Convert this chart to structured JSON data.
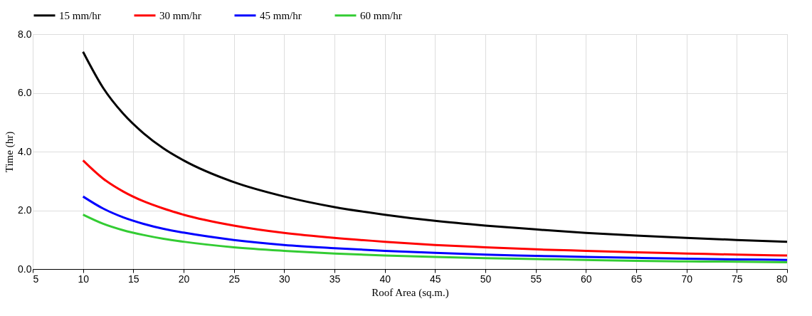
{
  "chart_data": {
    "type": "line",
    "xlabel": "Roof Area (sq.m.)",
    "ylabel": "Time (hr)",
    "x": [
      10,
      12,
      14,
      16,
      18,
      20,
      25,
      30,
      35,
      40,
      45,
      50,
      55,
      60,
      65,
      70,
      75,
      80
    ],
    "xlim": [
      5,
      80
    ],
    "xticks": [
      5,
      10,
      15,
      20,
      25,
      30,
      35,
      40,
      45,
      50,
      55,
      60,
      65,
      70,
      75,
      80
    ],
    "ylim": [
      0,
      8
    ],
    "yticks": [
      {
        "value": 0,
        "label": "0.0"
      },
      {
        "value": 2,
        "label": "2.0"
      },
      {
        "value": 4,
        "label": "4.0"
      },
      {
        "value": 6,
        "label": "6.0"
      },
      {
        "value": 8,
        "label": "8.0"
      }
    ],
    "grid": true,
    "legend": "top",
    "line_style": "solid",
    "marker": "none",
    "series": [
      {
        "name": "15 mm/hr",
        "color": "#000000",
        "values": [
          7.4,
          6.17,
          5.29,
          4.63,
          4.11,
          3.7,
          2.96,
          2.47,
          2.11,
          1.85,
          1.64,
          1.48,
          1.35,
          1.23,
          1.14,
          1.06,
          0.99,
          0.93
        ]
      },
      {
        "name": "30 mm/hr",
        "color": "#ff0000",
        "values": [
          3.7,
          3.08,
          2.64,
          2.31,
          2.06,
          1.85,
          1.48,
          1.23,
          1.06,
          0.93,
          0.82,
          0.74,
          0.67,
          0.62,
          0.57,
          0.53,
          0.49,
          0.46
        ]
      },
      {
        "name": "45 mm/hr",
        "color": "#0000ff",
        "values": [
          2.47,
          2.06,
          1.76,
          1.54,
          1.37,
          1.24,
          0.99,
          0.82,
          0.71,
          0.62,
          0.55,
          0.49,
          0.45,
          0.41,
          0.38,
          0.35,
          0.33,
          0.31
        ]
      },
      {
        "name": "60 mm/hr",
        "color": "#33cc33",
        "values": [
          1.85,
          1.54,
          1.32,
          1.16,
          1.03,
          0.93,
          0.74,
          0.62,
          0.53,
          0.46,
          0.41,
          0.37,
          0.34,
          0.31,
          0.28,
          0.26,
          0.25,
          0.23
        ]
      }
    ]
  }
}
